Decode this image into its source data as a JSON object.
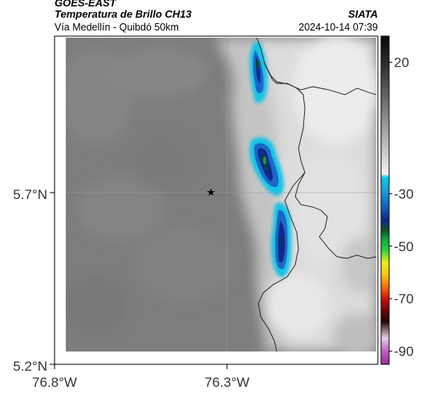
{
  "header": {
    "satellite": "GOES-EAST",
    "product": "Temperatura de Brillo CH13",
    "route": "Vía Medellín - Quibdó 50km",
    "organization": "SIATA",
    "timestamp": "2024-10-14 07:39"
  },
  "map": {
    "lat_labels": [
      "5.7°N",
      "5.2°N"
    ],
    "lon_labels": [
      "76.8°W",
      "76.3°W"
    ],
    "marker": "star-icon"
  },
  "colorbar": {
    "tick_labels": [
      "20",
      "-30",
      "-50",
      "-70",
      "-90"
    ],
    "values": [
      20,
      -30,
      -50,
      -70,
      -90
    ],
    "range": [
      30,
      -95
    ]
  }
}
